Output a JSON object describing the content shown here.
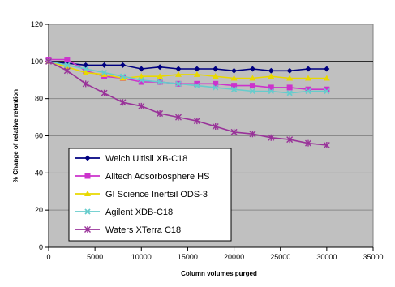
{
  "chart_data": {
    "type": "line",
    "title": "",
    "xlabel": "Column volumes purged",
    "ylabel": "% Change of relative retention",
    "xlim": [
      0,
      35000
    ],
    "ylim": [
      0,
      120
    ],
    "xticks": [
      0,
      5000,
      10000,
      15000,
      20000,
      25000,
      30000,
      35000
    ],
    "yticks": [
      0,
      20,
      40,
      60,
      80,
      100,
      120
    ],
    "grid": "horizontal",
    "reference_line": 100,
    "legend_position": "lower-left",
    "background_color": "#c0c0c0",
    "series": [
      {
        "name": "Welch Ultisil XB-C18",
        "color": "#000080",
        "marker": "diamond",
        "x": [
          0,
          2000,
          4000,
          6000,
          8000,
          10000,
          12000,
          14000,
          16000,
          18000,
          20000,
          22000,
          24000,
          26000,
          28000,
          30000
        ],
        "y": [
          100,
          99,
          98,
          98,
          98,
          96,
          97,
          96,
          96,
          96,
          95,
          96,
          95,
          95,
          96,
          96
        ]
      },
      {
        "name": "Alltech Adsorbosphere HS",
        "color": "#cc33cc",
        "marker": "square",
        "x": [
          0,
          2000,
          4000,
          6000,
          8000,
          10000,
          12000,
          14000,
          16000,
          18000,
          20000,
          22000,
          24000,
          26000,
          28000,
          30000
        ],
        "y": [
          101,
          101,
          95,
          92,
          91,
          89,
          89,
          88,
          88,
          88,
          87,
          87,
          86,
          86,
          85,
          85
        ]
      },
      {
        "name": "GI Science Inertsil ODS-3",
        "color": "#e8d800",
        "marker": "triangle",
        "x": [
          0,
          2000,
          4000,
          6000,
          8000,
          10000,
          12000,
          14000,
          16000,
          18000,
          20000,
          22000,
          24000,
          26000,
          28000,
          30000
        ],
        "y": [
          100,
          97,
          94,
          93,
          91,
          92,
          92,
          93,
          93,
          92,
          91,
          91,
          92,
          91,
          91,
          91
        ]
      },
      {
        "name": "Agilent XDB-C18",
        "color": "#66cccc",
        "marker": "x",
        "x": [
          0,
          2000,
          4000,
          6000,
          8000,
          10000,
          12000,
          14000,
          16000,
          18000,
          20000,
          22000,
          24000,
          26000,
          28000,
          30000
        ],
        "y": [
          100,
          98,
          96,
          94,
          92,
          90,
          89,
          88,
          87,
          86,
          85,
          84,
          84,
          83,
          84,
          84
        ]
      },
      {
        "name": "Waters XTerra C18",
        "color": "#993399",
        "marker": "star",
        "x": [
          0,
          2000,
          4000,
          6000,
          8000,
          10000,
          12000,
          14000,
          16000,
          18000,
          20000,
          22000,
          24000,
          26000,
          28000,
          30000
        ],
        "y": [
          100,
          95,
          88,
          83,
          78,
          76,
          72,
          70,
          68,
          65,
          62,
          61,
          59,
          58,
          56,
          55
        ]
      }
    ]
  }
}
